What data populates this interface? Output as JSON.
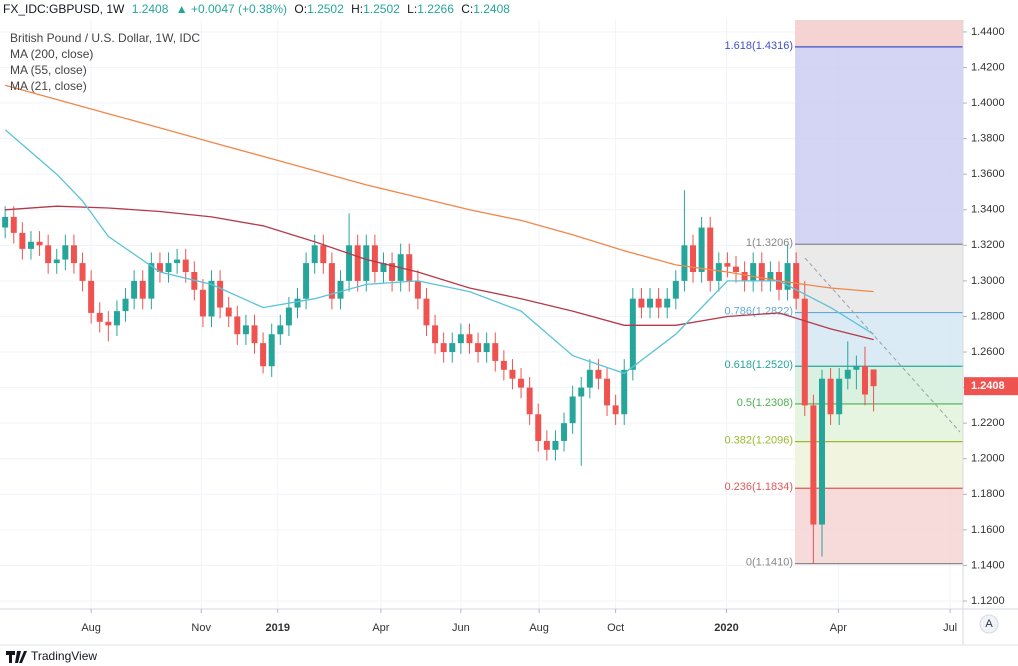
{
  "header": {
    "symbol": "FX_IDC:GBPUSD, 1W",
    "price": "1.2408",
    "arrow": "▲",
    "change": "+0.0047 (+0.38%)",
    "open_label": "O:",
    "open": "1.2502",
    "high_label": "H:",
    "high": "1.2502",
    "low_label": "L:",
    "low": "1.2266",
    "close_label": "C:",
    "close": "1.2408"
  },
  "footer": {
    "brand": "TradingView",
    "scale_button": "A"
  },
  "chart_data": {
    "type": "candlestick",
    "title": "British Pound / U.S. Dollar, 1W, IDC",
    "up_color": "#26a69a",
    "down_color": "#ef5350",
    "last_price_label": "1.2408",
    "xlim": [
      -0.6,
      111.4
    ],
    "xticks": [
      {
        "value": 10.0,
        "label": "Aug"
      },
      {
        "value": 22.8,
        "label": "Nov"
      },
      {
        "value": 31.7,
        "label": "2019"
      },
      {
        "value": 43.7,
        "label": "Apr"
      },
      {
        "value": 53.0,
        "label": "Jun"
      },
      {
        "value": 62.1,
        "label": "Aug"
      },
      {
        "value": 71.0,
        "label": "Oct"
      },
      {
        "value": 83.9,
        "label": "2020"
      },
      {
        "value": 96.9,
        "label": "Apr"
      },
      {
        "value": 109.9,
        "label": "Jul"
      }
    ],
    "ylim": [
      1.1155,
      1.4467
    ],
    "yticks": [
      {
        "value": 1.12,
        "label": "1.1200"
      },
      {
        "value": 1.14,
        "label": "1.1400"
      },
      {
        "value": 1.16,
        "label": "1.1600"
      },
      {
        "value": 1.18,
        "label": "1.1800"
      },
      {
        "value": 1.2,
        "label": "1.2000"
      },
      {
        "value": 1.22,
        "label": "1.2200"
      },
      {
        "value": 1.24,
        "label": "1.2400"
      },
      {
        "value": 1.26,
        "label": "1.2600"
      },
      {
        "value": 1.28,
        "label": "1.2800"
      },
      {
        "value": 1.3,
        "label": "1.3000"
      },
      {
        "value": 1.32,
        "label": "1.3200"
      },
      {
        "value": 1.34,
        "label": "1.3400"
      },
      {
        "value": 1.36,
        "label": "1.3600"
      },
      {
        "value": 1.38,
        "label": "1.3800"
      },
      {
        "value": 1.4,
        "label": "1.4000"
      },
      {
        "value": 1.42,
        "label": "1.4200"
      },
      {
        "value": 1.44,
        "label": "1.4400"
      }
    ],
    "grid": true,
    "x": [
      0,
      1,
      2,
      3,
      4,
      5,
      6,
      7,
      8,
      9,
      10,
      11,
      12,
      13,
      14,
      15,
      16,
      17,
      18,
      19,
      20,
      21,
      22,
      23,
      24,
      25,
      26,
      27,
      28,
      29,
      30,
      31,
      32,
      33,
      34,
      35,
      36,
      37,
      38,
      39,
      40,
      41,
      42,
      43,
      44,
      45,
      46,
      47,
      48,
      49,
      50,
      51,
      52,
      53,
      54,
      55,
      56,
      57,
      58,
      59,
      60,
      61,
      62,
      63,
      64,
      65,
      66,
      67,
      68,
      69,
      70,
      71,
      72,
      73,
      74,
      75,
      76,
      77,
      78,
      79,
      80,
      81,
      82,
      83,
      84,
      85,
      86,
      87,
      88,
      89,
      90,
      91,
      92,
      93,
      94,
      95,
      96,
      97,
      98,
      99,
      100,
      101
    ],
    "candles": [
      [
        1.33,
        1.342,
        1.324,
        1.336
      ],
      [
        1.336,
        1.342,
        1.321,
        1.327
      ],
      [
        1.327,
        1.333,
        1.312,
        1.318
      ],
      [
        1.318,
        1.328,
        1.312,
        1.322
      ],
      [
        1.322,
        1.328,
        1.314,
        1.32
      ],
      [
        1.32,
        1.326,
        1.304,
        1.31
      ],
      [
        1.31,
        1.318,
        1.304,
        1.312
      ],
      [
        1.312,
        1.326,
        1.306,
        1.32
      ],
      [
        1.32,
        1.326,
        1.304,
        1.31
      ],
      [
        1.31,
        1.316,
        1.294,
        1.3
      ],
      [
        1.3,
        1.306,
        1.276,
        1.282
      ],
      [
        1.282,
        1.288,
        1.271,
        1.277
      ],
      [
        1.277,
        1.283,
        1.266,
        1.275
      ],
      [
        1.275,
        1.289,
        1.269,
        1.283
      ],
      [
        1.283,
        1.296,
        1.277,
        1.29
      ],
      [
        1.29,
        1.306,
        1.284,
        1.3
      ],
      [
        1.3,
        1.306,
        1.284,
        1.29
      ],
      [
        1.29,
        1.316,
        1.284,
        1.31
      ],
      [
        1.31,
        1.316,
        1.299,
        1.305
      ],
      [
        1.305,
        1.316,
        1.299,
        1.31
      ],
      [
        1.31,
        1.318,
        1.304,
        1.312
      ],
      [
        1.312,
        1.318,
        1.299,
        1.305
      ],
      [
        1.305,
        1.311,
        1.289,
        1.295
      ],
      [
        1.295,
        1.301,
        1.274,
        1.28
      ],
      [
        1.28,
        1.306,
        1.274,
        1.3
      ],
      [
        1.3,
        1.306,
        1.279,
        1.285
      ],
      [
        1.285,
        1.291,
        1.274,
        1.28
      ],
      [
        1.28,
        1.286,
        1.264,
        1.27
      ],
      [
        1.27,
        1.281,
        1.264,
        1.275
      ],
      [
        1.275,
        1.281,
        1.259,
        1.265
      ],
      [
        1.265,
        1.271,
        1.248,
        1.252
      ],
      [
        1.252,
        1.276,
        1.246,
        1.27
      ],
      [
        1.27,
        1.281,
        1.264,
        1.275
      ],
      [
        1.275,
        1.291,
        1.269,
        1.285
      ],
      [
        1.285,
        1.296,
        1.279,
        1.29
      ],
      [
        1.29,
        1.316,
        1.284,
        1.31
      ],
      [
        1.31,
        1.326,
        1.304,
        1.32
      ],
      [
        1.32,
        1.326,
        1.304,
        1.31
      ],
      [
        1.31,
        1.316,
        1.284,
        1.29
      ],
      [
        1.29,
        1.306,
        1.284,
        1.3
      ],
      [
        1.3,
        1.338,
        1.294,
        1.32
      ],
      [
        1.32,
        1.326,
        1.294,
        1.3
      ],
      [
        1.3,
        1.326,
        1.294,
        1.32
      ],
      [
        1.32,
        1.326,
        1.299,
        1.305
      ],
      [
        1.305,
        1.316,
        1.299,
        1.31
      ],
      [
        1.31,
        1.316,
        1.294,
        1.3
      ],
      [
        1.3,
        1.321,
        1.294,
        1.315
      ],
      [
        1.315,
        1.321,
        1.294,
        1.3
      ],
      [
        1.3,
        1.306,
        1.284,
        1.29
      ],
      [
        1.29,
        1.296,
        1.269,
        1.275
      ],
      [
        1.275,
        1.281,
        1.259,
        1.265
      ],
      [
        1.265,
        1.271,
        1.254,
        1.26
      ],
      [
        1.26,
        1.271,
        1.254,
        1.265
      ],
      [
        1.265,
        1.276,
        1.259,
        1.27
      ],
      [
        1.27,
        1.276,
        1.259,
        1.265
      ],
      [
        1.265,
        1.271,
        1.254,
        1.26
      ],
      [
        1.26,
        1.271,
        1.254,
        1.265
      ],
      [
        1.265,
        1.271,
        1.249,
        1.255
      ],
      [
        1.255,
        1.261,
        1.244,
        1.25
      ],
      [
        1.25,
        1.256,
        1.239,
        1.245
      ],
      [
        1.245,
        1.251,
        1.234,
        1.24
      ],
      [
        1.24,
        1.246,
        1.219,
        1.225
      ],
      [
        1.225,
        1.231,
        1.204,
        1.21
      ],
      [
        1.21,
        1.216,
        1.199,
        1.205
      ],
      [
        1.205,
        1.216,
        1.199,
        1.21
      ],
      [
        1.21,
        1.226,
        1.204,
        1.22
      ],
      [
        1.22,
        1.241,
        1.214,
        1.235
      ],
      [
        1.235,
        1.246,
        1.196,
        1.24
      ],
      [
        1.24,
        1.256,
        1.234,
        1.25
      ],
      [
        1.25,
        1.256,
        1.239,
        1.245
      ],
      [
        1.245,
        1.251,
        1.224,
        1.23
      ],
      [
        1.23,
        1.236,
        1.219,
        1.225
      ],
      [
        1.225,
        1.256,
        1.219,
        1.25
      ],
      [
        1.25,
        1.296,
        1.244,
        1.29
      ],
      [
        1.29,
        1.296,
        1.279,
        1.285
      ],
      [
        1.285,
        1.296,
        1.279,
        1.29
      ],
      [
        1.29,
        1.296,
        1.279,
        1.285
      ],
      [
        1.285,
        1.296,
        1.279,
        1.29
      ],
      [
        1.29,
        1.306,
        1.284,
        1.3
      ],
      [
        1.3,
        1.351,
        1.294,
        1.32
      ],
      [
        1.32,
        1.326,
        1.299,
        1.305
      ],
      [
        1.305,
        1.336,
        1.299,
        1.33
      ],
      [
        1.33,
        1.336,
        1.294,
        1.3
      ],
      [
        1.3,
        1.316,
        1.294,
        1.31
      ],
      [
        1.31,
        1.316,
        1.302,
        1.308
      ],
      [
        1.308,
        1.314,
        1.299,
        1.305
      ],
      [
        1.305,
        1.311,
        1.294,
        1.3
      ],
      [
        1.3,
        1.316,
        1.294,
        1.31
      ],
      [
        1.31,
        1.316,
        1.294,
        1.3
      ],
      [
        1.3,
        1.311,
        1.294,
        1.305
      ],
      [
        1.305,
        1.311,
        1.289,
        1.295
      ],
      [
        1.295,
        1.3206,
        1.289,
        1.31
      ],
      [
        1.31,
        1.316,
        1.284,
        1.29
      ],
      [
        1.29,
        1.3,
        1.224,
        1.23
      ],
      [
        1.23,
        1.236,
        1.141,
        1.163
      ],
      [
        1.163,
        1.25,
        1.145,
        1.245
      ],
      [
        1.245,
        1.251,
        1.219,
        1.225
      ],
      [
        1.225,
        1.251,
        1.219,
        1.245
      ],
      [
        1.245,
        1.266,
        1.239,
        1.25
      ],
      [
        1.25,
        1.258,
        1.239,
        1.252
      ],
      [
        1.252,
        1.263,
        1.23,
        1.2361
      ],
      [
        1.2502,
        1.2502,
        1.2266,
        1.2408
      ]
    ],
    "series": [
      {
        "name": "MA (200, close)",
        "color": "#f0874a",
        "x": [
          0,
          6,
          12,
          18,
          24,
          30,
          36,
          42,
          48,
          54,
          60,
          66,
          72,
          78,
          84,
          90,
          96,
          101
        ],
        "values": [
          1.41,
          1.402,
          1.394,
          1.386,
          1.378,
          1.37,
          1.362,
          1.354,
          1.347,
          1.34,
          1.334,
          1.326,
          1.317,
          1.309,
          1.305,
          1.3,
          1.296,
          1.294
        ]
      },
      {
        "name": "MA (55, close)",
        "color": "#b5394a",
        "x": [
          0,
          6,
          12,
          18,
          24,
          30,
          36,
          42,
          48,
          54,
          60,
          66,
          72,
          78,
          84,
          90,
          96,
          101
        ],
        "values": [
          1.34,
          1.342,
          1.341,
          1.339,
          1.336,
          1.331,
          1.322,
          1.312,
          1.305,
          1.296,
          1.29,
          1.283,
          1.275,
          1.275,
          1.28,
          1.282,
          1.273,
          1.267
        ]
      },
      {
        "name": "MA (21, close)",
        "color": "#5bc3d8",
        "x": [
          0,
          6,
          9,
          12,
          18,
          24,
          30,
          36,
          42,
          48,
          54,
          60,
          66,
          72,
          78,
          84,
          90,
          96,
          101
        ],
        "values": [
          1.385,
          1.36,
          1.345,
          1.325,
          1.305,
          1.298,
          1.285,
          1.29,
          1.298,
          1.3,
          1.294,
          1.283,
          1.258,
          1.248,
          1.27,
          1.3,
          1.3,
          1.285,
          1.27
        ]
      }
    ],
    "fibonacci": {
      "top_fill": "#f6d3d3",
      "levels": [
        {
          "label": "1.618(1.4316)",
          "value": 1.4316,
          "color": "#3f51c5",
          "fill": "#cdcdf2"
        },
        {
          "label": "1(1.3206)",
          "value": 1.3206,
          "color": "#888888",
          "fill": "#e6e6e6"
        },
        {
          "label": "0.786(1.2822)",
          "value": 1.2822,
          "color": "#64a9d8",
          "fill": "#d3e8f3"
        },
        {
          "label": "0.618(1.2520)",
          "value": 1.252,
          "color": "#26a69a",
          "fill": "#d4eedd"
        },
        {
          "label": "0.5(1.2308)",
          "value": 1.2308,
          "color": "#4caf50",
          "fill": "#e2f3da"
        },
        {
          "label": "0.382(1.2096)",
          "value": 1.2096,
          "color": "#9bb82e",
          "fill": "#eef3da"
        },
        {
          "label": "0.236(1.1834)",
          "value": 1.1834,
          "color": "#e05858",
          "fill": "#f6d3d3"
        },
        {
          "label": "0(1.1410)",
          "value": 1.141,
          "color": "#888888",
          "fill": null
        }
      ]
    }
  }
}
